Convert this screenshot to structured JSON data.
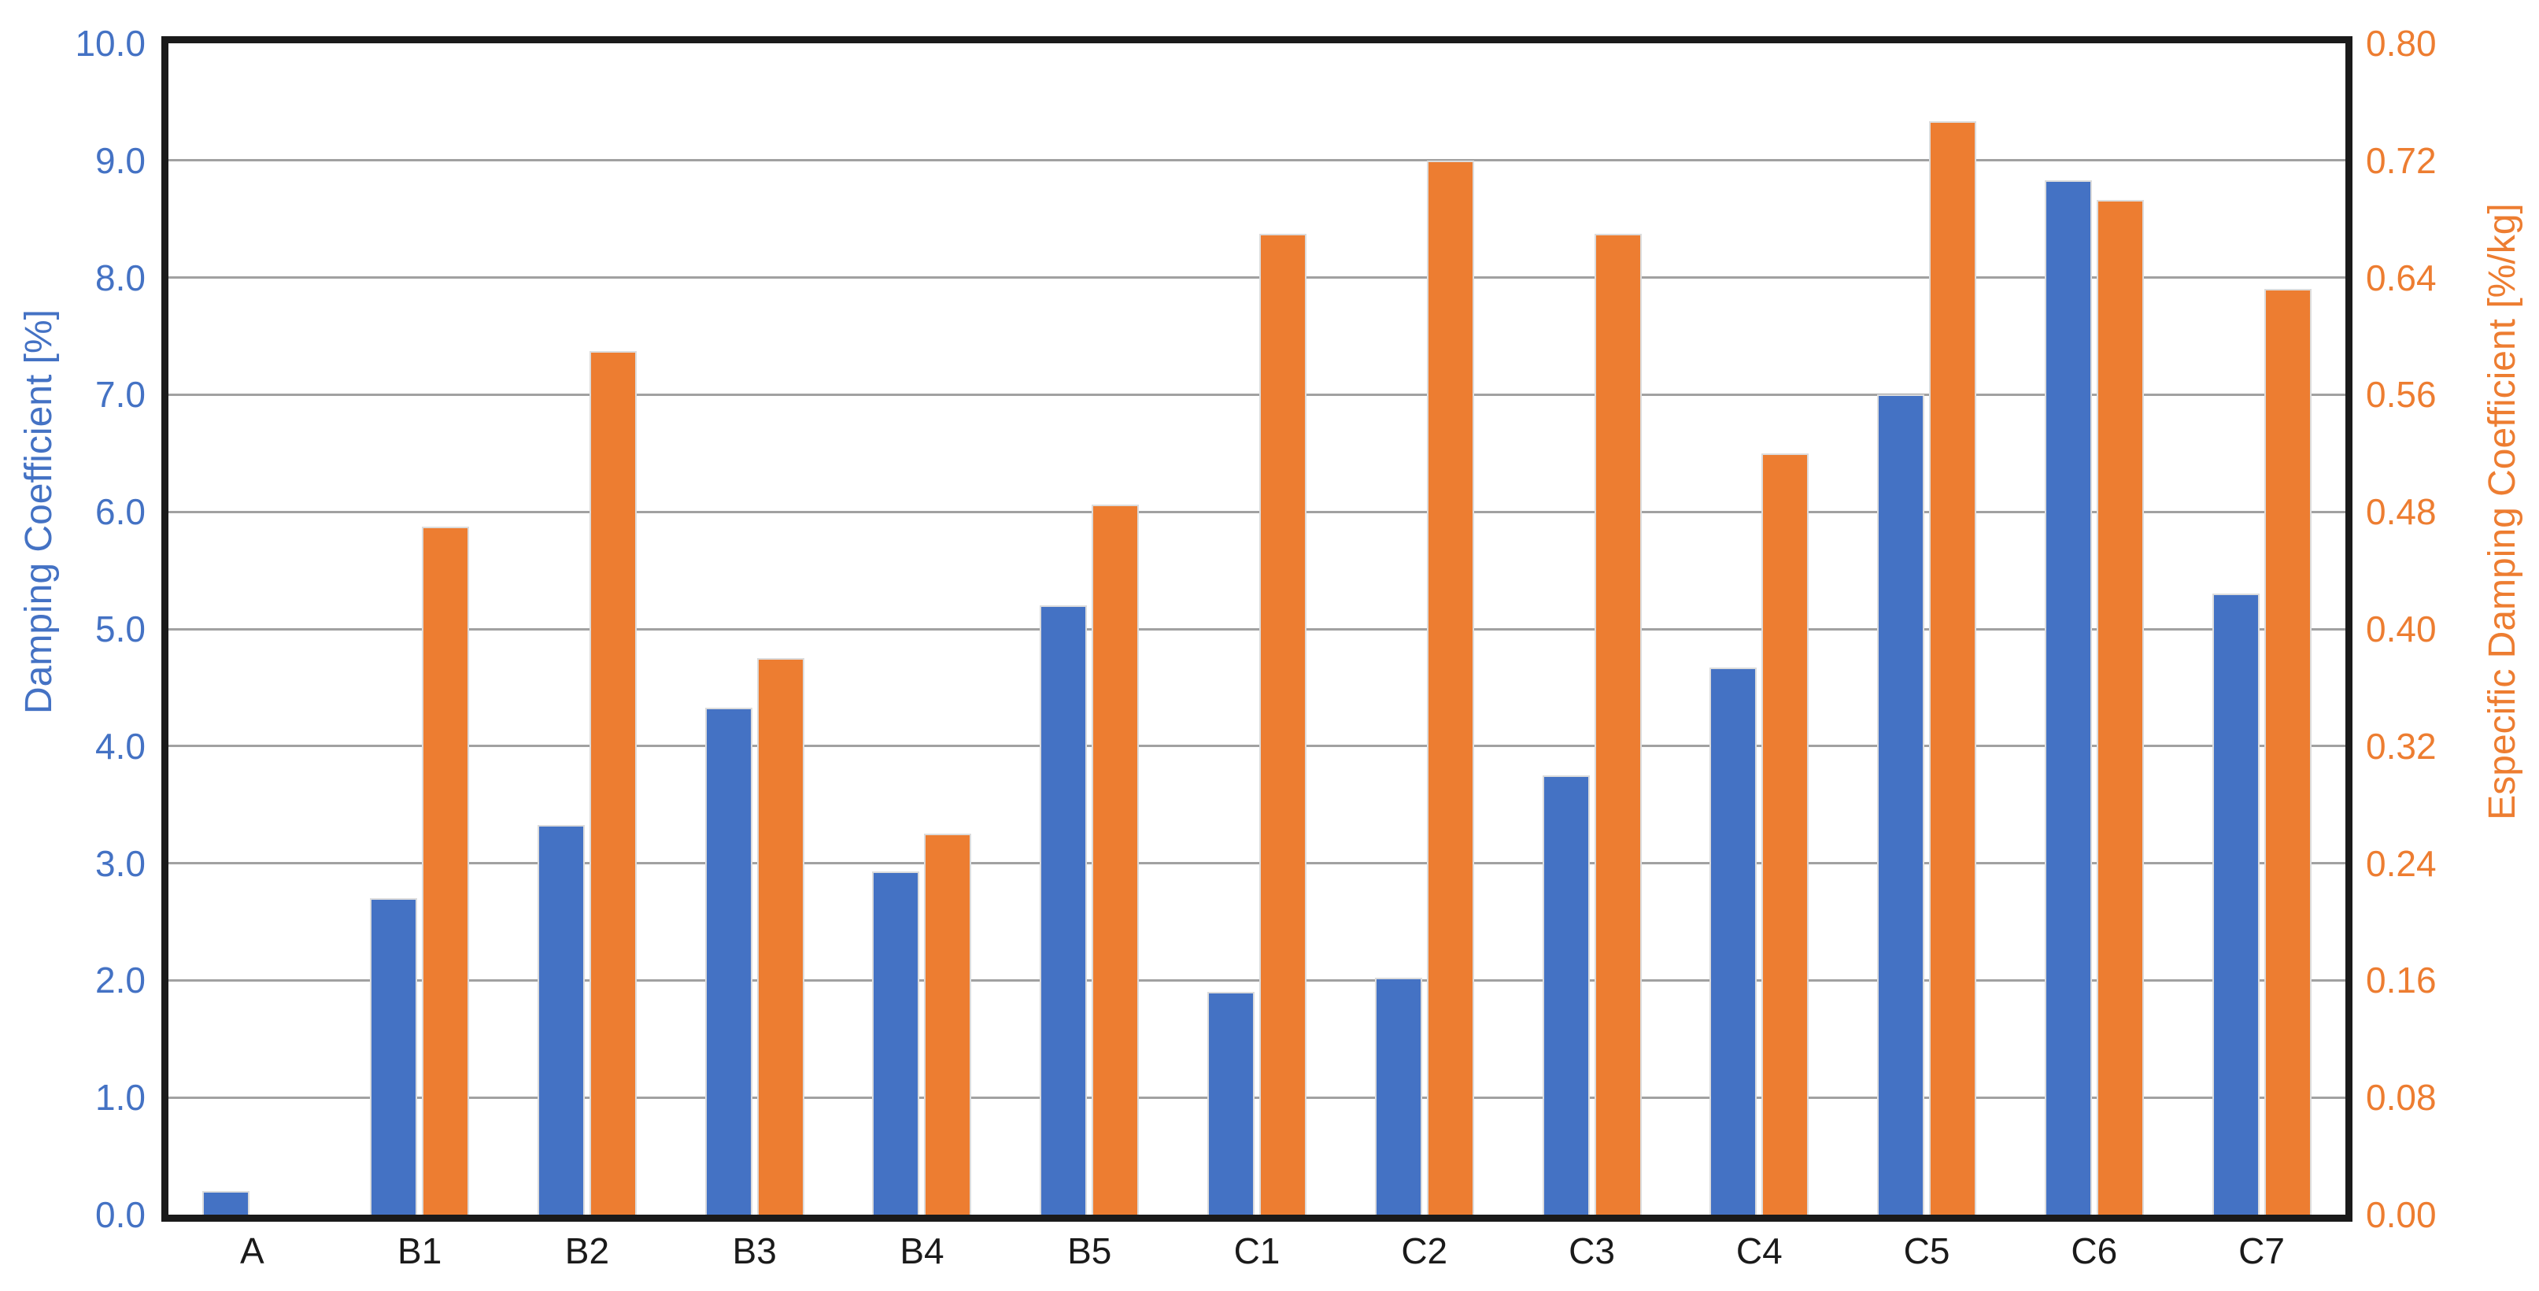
{
  "chart_data": {
    "type": "bar",
    "title": "",
    "categories": [
      "A",
      "B1",
      "B2",
      "B3",
      "B4",
      "B5",
      "C1",
      "C2",
      "C3",
      "C4",
      "C5",
      "C6",
      "C7"
    ],
    "series": [
      {
        "name": "Damping Coefficient [%]",
        "axis": "left",
        "color": "#4472C4",
        "values": [
          0.2,
          2.7,
          3.33,
          4.33,
          2.93,
          5.2,
          1.9,
          2.02,
          3.75,
          4.67,
          7.0,
          8.83,
          5.3
        ]
      },
      {
        "name": "Especific Damping Coefficient [%/kg]",
        "axis": "right",
        "color": "#ED7D31",
        "values": [
          null,
          0.47,
          0.59,
          0.38,
          0.26,
          0.485,
          0.67,
          0.72,
          0.67,
          0.52,
          0.747,
          0.693,
          0.632
        ]
      }
    ],
    "left_axis": {
      "title": "Damping Coefficient [%]",
      "color": "#4472C4",
      "min": 0,
      "max": 10,
      "tick_step": 1.0,
      "tick_labels": [
        "10.0",
        "9.0",
        "8.0",
        "7.0",
        "6.0",
        "5.0",
        "4.0",
        "3.0",
        "2.0",
        "1.0",
        "0.0"
      ]
    },
    "right_axis": {
      "title": "Especific Damping Coefficient [%/kg]",
      "color": "#ED7D31",
      "min": 0,
      "max": 0.8,
      "tick_step": 0.08,
      "tick_labels": [
        "0.80",
        "0.72",
        "0.64",
        "0.56",
        "0.48",
        "0.40",
        "0.32",
        "0.24",
        "0.16",
        "0.08",
        "0.00"
      ]
    },
    "x_axis": {
      "label_color": "#1a1a1a"
    },
    "legend": "none",
    "grid": true,
    "gridline_color": "#a1a1a1",
    "frame_color": "#1a1a1a",
    "background": "#ffffff"
  }
}
